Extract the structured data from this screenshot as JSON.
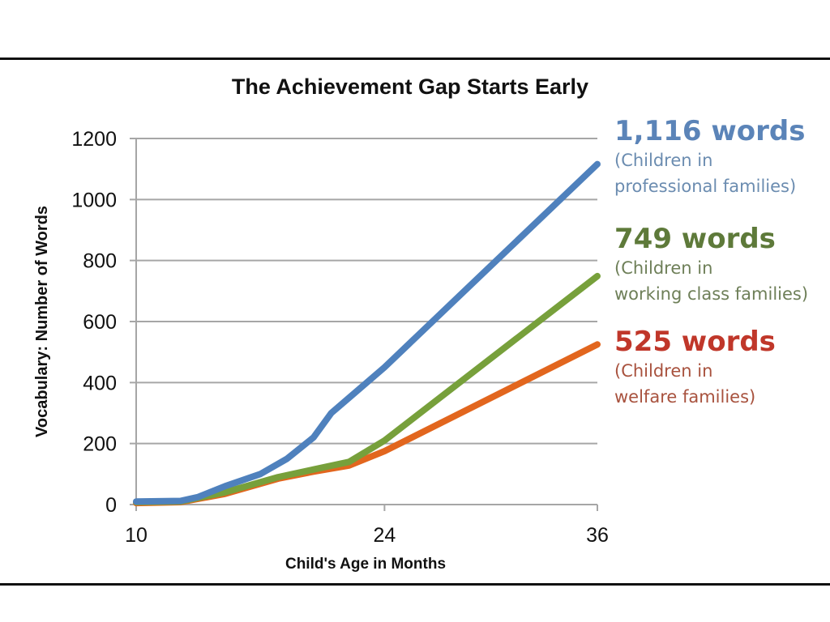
{
  "chart_data": {
    "type": "line",
    "title": "The Achievement Gap Starts Early",
    "xlabel": "Child's Age in Months",
    "ylabel": "Vocabulary: Number of Words",
    "xlim": [
      10,
      36
    ],
    "ylim": [
      0,
      1200
    ],
    "xticks": [
      10,
      24,
      36
    ],
    "yticks": [
      0,
      200,
      400,
      600,
      800,
      1000,
      1200
    ],
    "grid": "horizontal",
    "series": [
      {
        "name": "Children in professional families",
        "color": "#4f81bd",
        "x": [
          10,
          12.5,
          13.5,
          15,
          17,
          18.5,
          20,
          21,
          22,
          24,
          36
        ],
        "y": [
          10,
          12,
          25,
          60,
          100,
          150,
          220,
          300,
          350,
          450,
          1116
        ]
      },
      {
        "name": "Children in working class families",
        "color": "#77a03b",
        "x": [
          10,
          12.5,
          15,
          18,
          20,
          22,
          24,
          36
        ],
        "y": [
          8,
          10,
          40,
          90,
          115,
          140,
          210,
          749
        ]
      },
      {
        "name": "Children in welfare families",
        "color": "#e2661e",
        "x": [
          10,
          12.5,
          15,
          18,
          20,
          22,
          24,
          36
        ],
        "y": [
          5,
          8,
          35,
          85,
          108,
          128,
          175,
          525
        ]
      }
    ],
    "annotations": [
      {
        "value": "1,116 words",
        "line1": "(Children in",
        "line2": "professional families)",
        "color": "#5b84b8",
        "textColor": "#6b8cb0"
      },
      {
        "value": "749 words",
        "line1": "(Children in",
        "line2": "working class families)",
        "color": "#5e7a3a",
        "textColor": "#6e7f58"
      },
      {
        "value": "525 words",
        "line1": "(Children in",
        "line2": "welfare families)",
        "color": "#c0372a",
        "textColor": "#a8523e"
      }
    ]
  }
}
